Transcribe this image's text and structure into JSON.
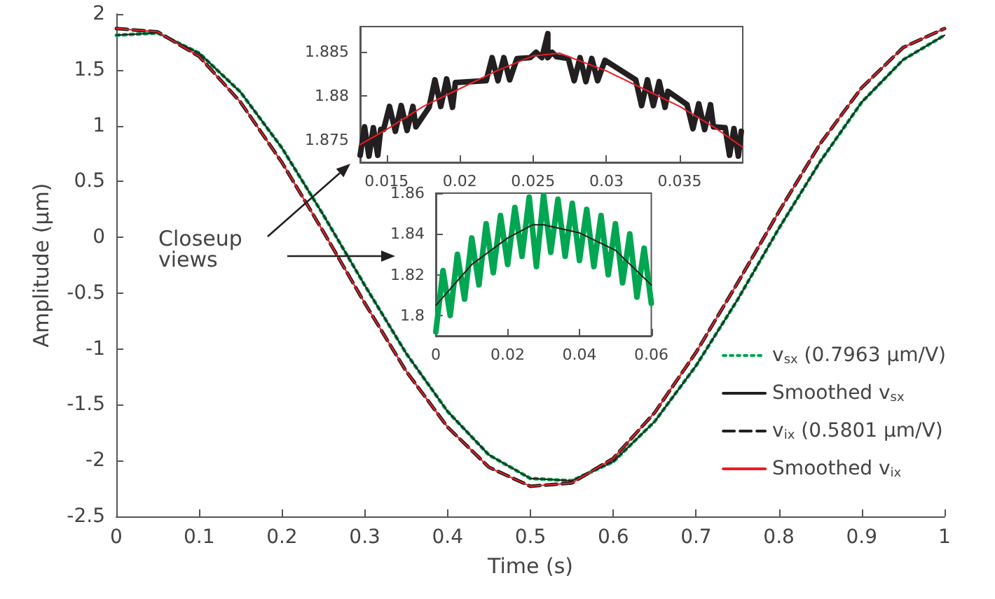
{
  "chart_data": [
    {
      "type": "line",
      "xlabel": "Time (s)",
      "ylabel": "Amplitude (µm)",
      "x": [
        0,
        0.05,
        0.1,
        0.15,
        0.2,
        0.25,
        0.3,
        0.35,
        0.4,
        0.45,
        0.5,
        0.55,
        0.6,
        0.65,
        0.7,
        0.75,
        0.8,
        0.85,
        0.9,
        0.95,
        1
      ],
      "series": [
        {
          "name": "v$_{sx}$ (0.7963 µm/V)",
          "color": "#00a651",
          "line_style": "dotted",
          "values": [
            1.81,
            1.83,
            1.65,
            1.3,
            0.8,
            0.2,
            -0.43,
            -1.04,
            -1.56,
            -1.95,
            -2.16,
            -2.18,
            -2.01,
            -1.65,
            -1.15,
            -0.56,
            0.08,
            0.68,
            1.21,
            1.59,
            1.81
          ]
        },
        {
          "name": "Smoothed v$_{sx}$",
          "color": "#231f20",
          "line_style": "solid",
          "values": [
            1.81,
            1.83,
            1.65,
            1.3,
            0.8,
            0.2,
            -0.43,
            -1.04,
            -1.56,
            -1.95,
            -2.16,
            -2.18,
            -2.01,
            -1.65,
            -1.15,
            -0.56,
            0.08,
            0.68,
            1.21,
            1.59,
            1.81
          ]
        },
        {
          "name": "v$_{ix}$ (0.5801 µm/V)",
          "color": "#231f20",
          "line_style": "dashed",
          "values": [
            1.87,
            1.84,
            1.62,
            1.21,
            0.67,
            0.05,
            -0.59,
            -1.2,
            -1.7,
            -2.06,
            -2.23,
            -2.2,
            -1.98,
            -1.57,
            -1.03,
            -0.41,
            0.23,
            0.84,
            1.34,
            1.7,
            1.87
          ]
        },
        {
          "name": "Smoothed v$_{ix}$",
          "color": "#ed1c24",
          "line_style": "solid",
          "values": [
            1.87,
            1.84,
            1.62,
            1.21,
            0.67,
            0.05,
            -0.59,
            -1.2,
            -1.7,
            -2.06,
            -2.23,
            -2.2,
            -1.98,
            -1.57,
            -1.03,
            -0.41,
            0.23,
            0.84,
            1.34,
            1.7,
            1.87
          ]
        }
      ],
      "xlim": [
        0,
        1
      ],
      "xticks": [
        0,
        0.1,
        0.2,
        0.3,
        0.4,
        0.5,
        0.6,
        0.7,
        0.8,
        0.9,
        1
      ],
      "ylim": [
        -2.5,
        2
      ],
      "yticks": [
        -2.5,
        -2,
        -1.5,
        -1,
        -0.5,
        0,
        0.5,
        1,
        1.5,
        2
      ],
      "legend": "bottom right",
      "annotations": [
        "Closeup views"
      ]
    },
    {
      "type": "line",
      "series": [
        {
          "color": "#231f20",
          "x": [
            0.0132,
            0.0135,
            0.0138,
            0.0141,
            0.0144,
            0.0146,
            0.0148,
            0.0152,
            0.0156,
            0.016,
            0.0164,
            0.0168,
            0.017,
            0.0179,
            0.0183,
            0.0187,
            0.0191,
            0.0195,
            0.0197,
            0.0218,
            0.0222,
            0.0226,
            0.023,
            0.0234,
            0.0239,
            0.0248,
            0.0252,
            0.0256,
            0.026,
            0.026,
            0.0263,
            0.0266,
            0.0274,
            0.0278,
            0.0282,
            0.0286,
            0.029,
            0.0294,
            0.0299,
            0.032,
            0.0324,
            0.0328,
            0.0332,
            0.0336,
            0.034,
            0.0342,
            0.0355,
            0.0359,
            0.0363,
            0.0367,
            0.0371,
            0.0373,
            0.0381,
            0.0384,
            0.0387,
            0.039,
            0.0392
          ],
          "values": [
            1.8733,
            1.8765,
            1.8732,
            1.8764,
            1.8733,
            1.8762,
            1.8762,
            1.8788,
            1.876,
            1.8789,
            1.8761,
            1.8788,
            1.8765,
            1.8787,
            1.8818,
            1.8788,
            1.8819,
            1.8787,
            1.8815,
            1.8817,
            1.8843,
            1.8817,
            1.8843,
            1.8818,
            1.8842,
            1.8843,
            1.8849,
            1.8843,
            1.887,
            1.8843,
            1.8849,
            1.8844,
            1.8842,
            1.8817,
            1.8843,
            1.8816,
            1.8842,
            1.8817,
            1.884,
            1.8818,
            1.8789,
            1.8818,
            1.8789,
            1.8816,
            1.8787,
            1.8805,
            1.879,
            1.8763,
            1.8791,
            1.8762,
            1.879,
            1.8765,
            1.8764,
            1.8733,
            1.8763,
            1.8732,
            1.876
          ]
        },
        {
          "color": "#ed1c24",
          "x": [
            0.0132,
            0.015,
            0.0175,
            0.02,
            0.0225,
            0.025,
            0.0268,
            0.03,
            0.0325,
            0.035,
            0.0375,
            0.0393
          ],
          "values": [
            1.8745,
            1.8762,
            1.8788,
            1.8808,
            1.8828,
            1.8845,
            1.8848,
            1.8828,
            1.8808,
            1.8788,
            1.8763,
            1.8742
          ]
        }
      ],
      "xlim": [
        0.0132,
        0.0393
      ],
      "xticks": [
        0.015,
        0.02,
        0.025,
        0.03,
        0.035
      ],
      "ylim": [
        1.8725,
        1.8878
      ],
      "yticks": [
        1.875,
        1.88,
        1.885
      ]
    },
    {
      "type": "line",
      "series": [
        {
          "color": "#00a651",
          "x": [
            0,
            0.002,
            0.004,
            0.006,
            0.008,
            0.01,
            0.012,
            0.014,
            0.016,
            0.018,
            0.02,
            0.022,
            0.024,
            0.026,
            0.028,
            0.03,
            0.032,
            0.034,
            0.036,
            0.038,
            0.04,
            0.042,
            0.044,
            0.046,
            0.048,
            0.05,
            0.052,
            0.054,
            0.056,
            0.058,
            0.06
          ],
          "values": [
            1.792,
            1.822,
            1.8,
            1.83,
            1.808,
            1.838,
            1.815,
            1.845,
            1.821,
            1.849,
            1.825,
            1.853,
            1.829,
            1.858,
            1.824,
            1.859,
            1.831,
            1.857,
            1.829,
            1.855,
            1.827,
            1.852,
            1.824,
            1.849,
            1.82,
            1.845,
            1.816,
            1.84,
            1.809,
            1.833,
            1.806
          ]
        },
        {
          "color": "#231f20",
          "x": [
            0,
            0.01,
            0.02,
            0.027,
            0.03,
            0.04,
            0.05,
            0.06
          ],
          "values": [
            1.805,
            1.825,
            1.838,
            1.8445,
            1.8445,
            1.8405,
            1.832,
            1.815
          ]
        }
      ],
      "xlim": [
        0,
        0.06
      ],
      "xticks": [
        0,
        0.02,
        0.04,
        0.06
      ],
      "ylim": [
        1.79,
        1.86
      ],
      "yticks": [
        1.8,
        1.82,
        1.84,
        1.86
      ]
    }
  ]
}
